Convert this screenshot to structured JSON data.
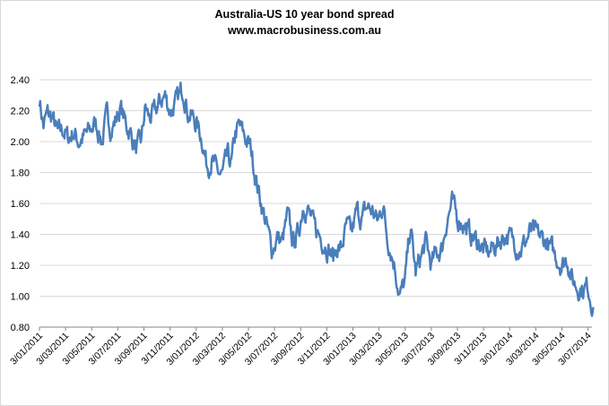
{
  "chart_data": {
    "type": "line",
    "title": "Australia-US 10 year bond spread",
    "subtitle": "www.macrobusiness.com.au",
    "xlabel": "",
    "ylabel": "",
    "ylim": [
      0.8,
      2.4
    ],
    "y_ticks": [
      "0.80",
      "1.00",
      "1.20",
      "1.40",
      "1.60",
      "1.80",
      "2.00",
      "2.20",
      "2.40"
    ],
    "x_ticks": [
      "3/01/2011",
      "3/03/2011",
      "3/05/2011",
      "3/07/2011",
      "3/09/2011",
      "3/11/2011",
      "3/01/2012",
      "3/03/2012",
      "3/05/2012",
      "3/07/2012",
      "3/09/2012",
      "3/11/2012",
      "3/01/2013",
      "3/03/2013",
      "3/05/2013",
      "3/07/2013",
      "3/09/2013",
      "3/11/2013",
      "3/01/2014",
      "3/03/2014",
      "3/05/2014",
      "3/07/2014"
    ],
    "grid": true,
    "legend": "none",
    "series": [
      {
        "name": "Australia-US 10 year bond spread",
        "color": "#4a7ebb",
        "anchors_x_months": [
          0,
          0.3,
          0.6,
          1.0,
          1.4,
          1.8,
          2.2,
          2.6,
          3.0,
          3.4,
          3.8,
          4.3,
          4.8,
          5.2,
          5.5,
          5.9,
          6.2,
          6.6,
          7.0,
          7.4,
          7.8,
          8.1,
          8.4,
          8.8,
          9.2,
          9.6,
          10.0,
          10.5,
          11.0,
          11.4,
          11.8,
          12.2,
          12.5,
          12.8,
          13.2,
          13.6,
          14.0,
          14.4,
          14.7,
          15.0,
          15.3,
          15.6,
          15.9,
          16.2,
          16.6,
          17.0,
          17.4,
          17.8,
          18.2,
          18.6,
          19.0,
          19.4,
          19.8,
          20.2,
          20.6,
          21.0,
          21.4,
          21.8,
          22.2,
          22.5,
          22.8,
          23.1,
          23.5,
          23.9,
          24.3,
          24.7,
          25.1,
          25.5,
          25.9,
          26.3,
          26.6,
          26.9,
          27.2,
          27.6,
          28.0,
          28.4,
          28.8,
          29.2,
          29.6,
          30.0,
          30.4,
          30.8,
          31.2,
          31.6,
          32.0,
          32.4,
          32.8,
          33.2,
          33.6,
          34.0,
          34.4,
          34.8,
          35.2,
          35.6,
          36.0,
          36.4,
          36.8,
          37.2,
          37.6,
          38.0,
          38.4,
          38.8,
          39.2,
          39.6,
          40.0,
          40.4,
          40.8,
          41.2,
          41.6,
          42.0,
          42.4
        ],
        "anchors_values": [
          2.28,
          2.1,
          2.18,
          2.15,
          2.05,
          2.08,
          2.02,
          2.06,
          2.0,
          2.03,
          2.06,
          2.12,
          2.0,
          2.18,
          2.08,
          2.15,
          2.22,
          2.12,
          2.05,
          1.95,
          2.0,
          2.22,
          2.15,
          2.18,
          2.25,
          2.3,
          2.2,
          2.25,
          2.35,
          2.18,
          2.15,
          2.08,
          2.0,
          1.85,
          1.88,
          1.8,
          1.78,
          1.9,
          1.85,
          2.05,
          2.1,
          2.05,
          2.0,
          1.95,
          1.75,
          1.6,
          1.45,
          1.3,
          1.38,
          1.35,
          1.52,
          1.35,
          1.4,
          1.6,
          1.55,
          1.45,
          1.4,
          1.35,
          1.3,
          1.25,
          1.32,
          1.3,
          1.45,
          1.4,
          1.55,
          1.5,
          1.58,
          1.55,
          1.48,
          1.6,
          1.4,
          1.3,
          1.2,
          1.0,
          1.1,
          1.45,
          1.15,
          1.25,
          1.35,
          1.2,
          1.28,
          1.3,
          1.5,
          1.6,
          1.5,
          1.48,
          1.42,
          1.38,
          1.35,
          1.3,
          1.28,
          1.32,
          1.35,
          1.4,
          1.38,
          1.35,
          1.3,
          1.35,
          1.42,
          1.4,
          1.38,
          1.35,
          1.3,
          1.25,
          1.2,
          1.25,
          1.1,
          1.06,
          1.05,
          1.06,
          0.93
        ],
        "note": "daily series approximated by anchor values; x measured in months from 3/01/2011"
      }
    ]
  }
}
